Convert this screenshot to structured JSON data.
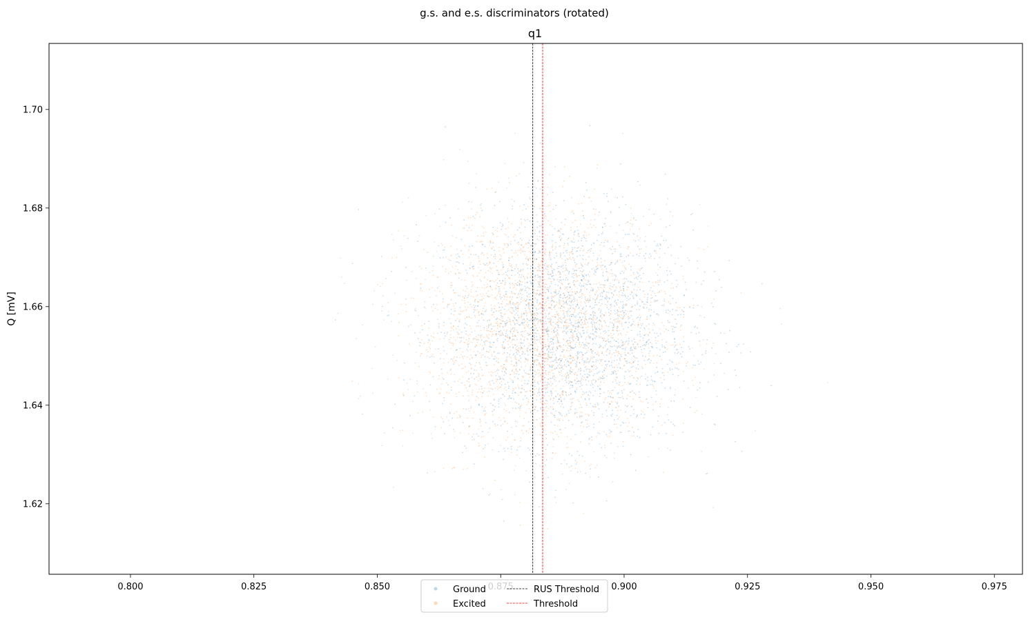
{
  "chart_data": {
    "type": "scatter",
    "suptitle": "g.s. and e.s. discriminators (rotated)",
    "title": "q1",
    "xlabel": "",
    "ylabel": "Q [mV]",
    "xlim": [
      0.7835,
      0.9807
    ],
    "ylim": [
      1.6057,
      1.7134
    ],
    "xticks": [
      0.8,
      0.825,
      0.85,
      0.875,
      0.9,
      0.925,
      0.95,
      0.975
    ],
    "xtick_labels": [
      "0.800",
      "0.825",
      "0.850",
      "0.875",
      "0.900",
      "0.925",
      "0.950",
      "0.975"
    ],
    "yticks": [
      1.62,
      1.64,
      1.66,
      1.68,
      1.7
    ],
    "ytick_labels": [
      "1.62",
      "1.64",
      "1.66",
      "1.68",
      "1.70"
    ],
    "grid": false,
    "legend_position": "lower center",
    "series": [
      {
        "name": "Ground",
        "kind": "scatter",
        "color": "#1f77b4",
        "alpha": 0.25,
        "center": [
          0.8885,
          1.6555
        ],
        "spread": [
          0.0125,
          0.0115
        ],
        "count": 2600
      },
      {
        "name": "Excited",
        "kind": "scatter",
        "color": "#ff7f0e",
        "alpha": 0.25,
        "center": [
          0.8835,
          1.6555
        ],
        "spread": [
          0.0135,
          0.012
        ],
        "count": 2600
      },
      {
        "name": "RUS Threshold",
        "kind": "vline",
        "x": 0.8815,
        "color": "#000000",
        "linestyle": "dashed"
      },
      {
        "name": "Threshold",
        "kind": "vline",
        "x": 0.8835,
        "color": "#ff0000",
        "linestyle": "dashed"
      }
    ]
  }
}
